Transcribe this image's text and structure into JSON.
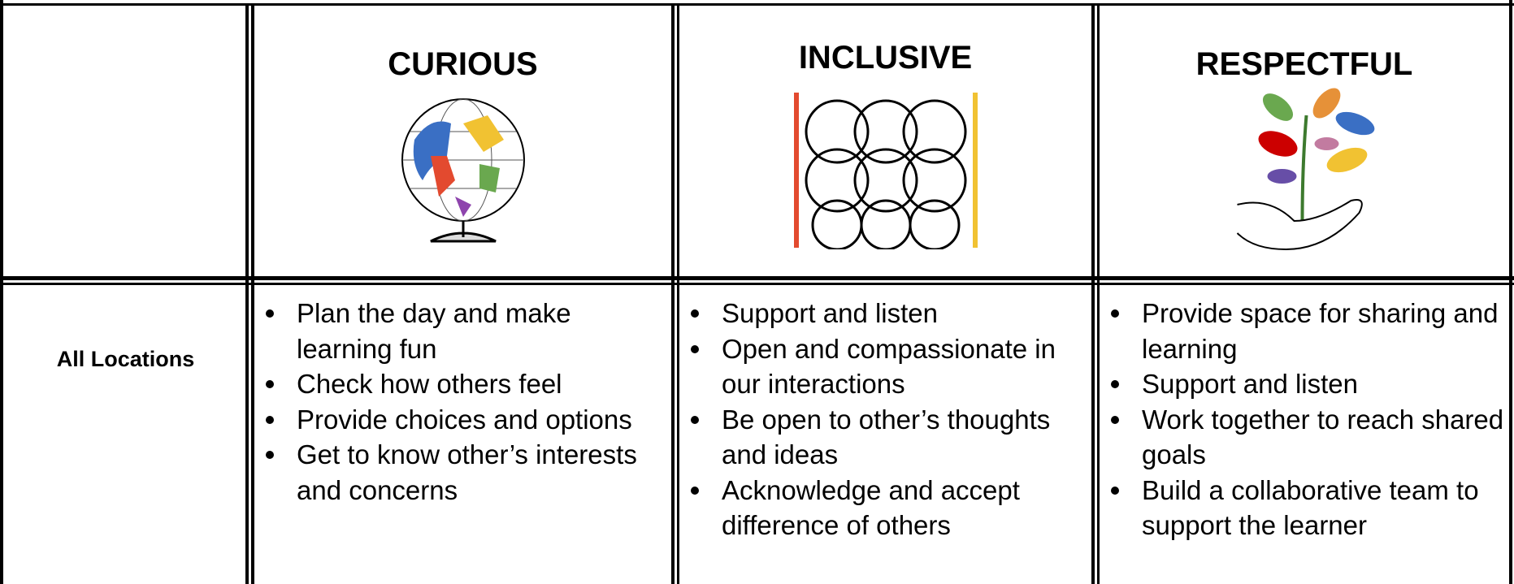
{
  "row_label": "All Locations",
  "columns": [
    {
      "title": "CURIOUS",
      "items": [
        "Plan the day and make learning fun",
        "Check how others feel",
        "Provide choices and options",
        "Get to know other’s interests and concerns"
      ]
    },
    {
      "title": "INCLUSIVE",
      "items": [
        "Support and listen",
        "Open and compassionate in our interactions",
        "Be open to other’s thoughts and ideas",
        "Acknowledge and accept difference of others"
      ]
    },
    {
      "title": "RESPECTFUL",
      "items": [
        "Provide space for sharing and learning",
        "Support and listen",
        "Work together to reach shared goals",
        "Build a collaborative team to support the learner"
      ]
    }
  ]
}
